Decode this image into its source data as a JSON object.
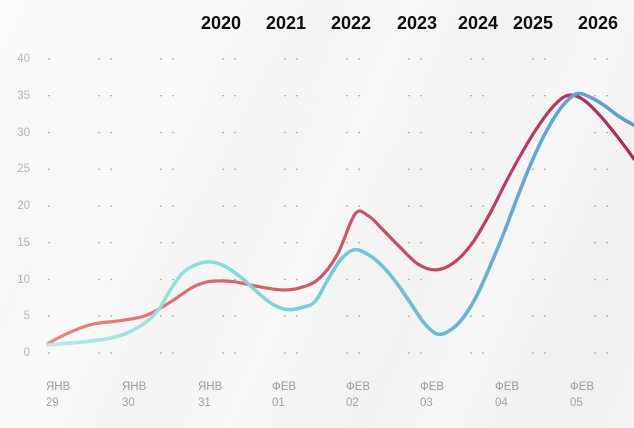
{
  "chart_data": {
    "type": "line",
    "title": "",
    "grid": "dotted",
    "legend_position": "none",
    "year_labels": [
      "2020",
      "2021",
      "2022",
      "2023",
      "2024",
      "2025",
      "2026"
    ],
    "y_ticks": [
      "40",
      "35",
      "30",
      "25",
      "20",
      "15",
      "10",
      "5",
      "0"
    ],
    "ylim": [
      0,
      40
    ],
    "x_ticks": [
      {
        "month": "ЯНВ",
        "day": "29"
      },
      {
        "month": "ЯНВ",
        "day": "30"
      },
      {
        "month": "ЯНВ",
        "day": "31"
      },
      {
        "month": "ФЕВ",
        "day": "01"
      },
      {
        "month": "ФЕВ",
        "day": "02"
      },
      {
        "month": "ФЕВ",
        "day": "03"
      },
      {
        "month": "ФЕВ",
        "day": "04"
      },
      {
        "month": "ФЕВ",
        "day": "05"
      }
    ],
    "series": [
      {
        "name": "crimson-line",
        "color_start": "#e9897e",
        "color_mid": "#c85565",
        "color_end": "#ab2a56",
        "values_at_x_ticks": [
          1.25,
          4.4,
          9.1,
          8.6,
          18.7,
          11.7,
          22.3,
          34.9
        ],
        "points": [
          [
            48,
            1.3
          ],
          [
            68,
            2.7
          ],
          [
            92,
            3.9
          ],
          [
            120,
            4.4
          ],
          [
            146,
            5.1
          ],
          [
            170,
            6.9
          ],
          [
            192,
            8.9
          ],
          [
            205,
            9.6
          ],
          [
            216,
            9.8
          ],
          [
            234,
            9.7
          ],
          [
            256,
            9.1
          ],
          [
            280,
            8.6
          ],
          [
            298,
            8.8
          ],
          [
            318,
            10.0
          ],
          [
            337,
            13.3
          ],
          [
            355,
            18.9
          ],
          [
            368,
            18.7
          ],
          [
            382,
            16.9
          ],
          [
            400,
            14.4
          ],
          [
            418,
            12.1
          ],
          [
            436,
            11.3
          ],
          [
            454,
            12.3
          ],
          [
            472,
            14.9
          ],
          [
            490,
            19.0
          ],
          [
            508,
            23.8
          ],
          [
            526,
            28.2
          ],
          [
            543,
            31.8
          ],
          [
            558,
            34.2
          ],
          [
            570,
            35.1
          ],
          [
            584,
            34.4
          ],
          [
            600,
            32.3
          ],
          [
            617,
            29.5
          ],
          [
            634,
            26.4
          ]
        ]
      },
      {
        "name": "cyan-blue-line",
        "color_start": "#b7e9e6",
        "color_mid": "#70c5d6",
        "color_end": "#5e9dcc",
        "values_at_x_ticks": [
          1.1,
          2.2,
          12.0,
          6.2,
          13.9,
          4.0,
          15.5,
          35.2
        ],
        "points": [
          [
            48,
            1.1
          ],
          [
            75,
            1.4
          ],
          [
            100,
            1.8
          ],
          [
            116,
            2.2
          ],
          [
            130,
            2.9
          ],
          [
            146,
            4.2
          ],
          [
            158,
            5.8
          ],
          [
            170,
            8.5
          ],
          [
            182,
            10.8
          ],
          [
            194,
            11.9
          ],
          [
            207,
            12.4
          ],
          [
            222,
            12.0
          ],
          [
            240,
            10.4
          ],
          [
            258,
            8.2
          ],
          [
            272,
            6.7
          ],
          [
            287,
            5.9
          ],
          [
            302,
            6.2
          ],
          [
            315,
            7.0
          ],
          [
            328,
            10.0
          ],
          [
            340,
            12.6
          ],
          [
            353,
            14.0
          ],
          [
            364,
            13.7
          ],
          [
            378,
            12.4
          ],
          [
            394,
            10.0
          ],
          [
            409,
            7.1
          ],
          [
            424,
            4.1
          ],
          [
            437,
            2.6
          ],
          [
            449,
            3.0
          ],
          [
            462,
            4.6
          ],
          [
            476,
            7.6
          ],
          [
            490,
            11.8
          ],
          [
            504,
            16.4
          ],
          [
            518,
            21.4
          ],
          [
            532,
            26.1
          ],
          [
            546,
            30.1
          ],
          [
            560,
            33.2
          ],
          [
            572,
            34.9
          ],
          [
            580,
            35.3
          ],
          [
            592,
            34.7
          ],
          [
            605,
            33.6
          ],
          [
            620,
            32.1
          ],
          [
            634,
            31.0
          ]
        ]
      }
    ]
  },
  "colors": {
    "background": "#f5f4f4",
    "year_label": "#0c0c0c",
    "y_axis_label": "#b5b3b3",
    "x_axis_label": "#9c9a9a",
    "grid_dot": "#5d5d5d"
  }
}
